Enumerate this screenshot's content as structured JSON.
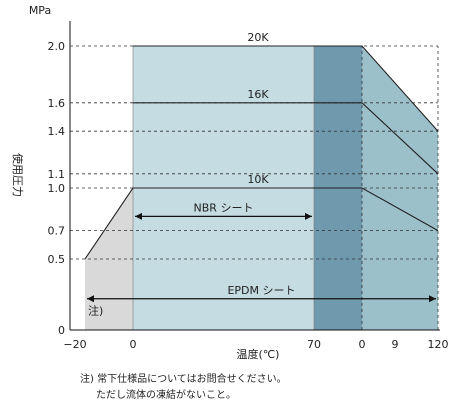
{
  "chart_data": {
    "type": "area",
    "title": "",
    "y_unit": "MPa",
    "ylabel": "使用圧力",
    "xlabel": "温度(℃)",
    "x_tick_labels": [
      "−20",
      "0",
      "70",
      "0",
      "9",
      "120"
    ],
    "y_ticks": [
      0,
      0.5,
      0.7,
      1.0,
      1.1,
      1.4,
      1.6,
      2.0
    ],
    "y_tick_labels": [
      "0",
      "0.5",
      "0.7",
      "1.0",
      "1.1",
      "1.4",
      "1.6",
      "2.0"
    ],
    "ylim": [
      0,
      2.0
    ],
    "xlim": [
      -20,
      120
    ],
    "grid": "dashed-horizontal",
    "series": [
      {
        "name": "20K",
        "x": [
          0,
          70,
          90,
          120
        ],
        "y": [
          2.0,
          2.0,
          2.0,
          1.4
        ]
      },
      {
        "name": "16K",
        "x": [
          0,
          70,
          90,
          120
        ],
        "y": [
          1.6,
          1.6,
          1.6,
          1.1
        ]
      },
      {
        "name": "10K",
        "x": [
          -20,
          0,
          90,
          120
        ],
        "y": [
          0.5,
          1.0,
          1.0,
          0.7
        ]
      }
    ],
    "ranges": [
      {
        "label": "NBR  シート",
        "from": 0,
        "to": 70,
        "y": 0.8
      },
      {
        "label": "EPDM  シート",
        "from": -20,
        "to": 120,
        "y": 0.22
      }
    ],
    "annotations": [
      "注)"
    ],
    "colors": {
      "light": "#c5dde2",
      "mid": "#9bc0ca",
      "dark": "#6f9aae",
      "gray": "#d9d9d9",
      "line": "#222222"
    }
  },
  "notes": [
    "注)  常下仕様品についてはお問合せください。",
    "ただし流体の凍結がないこと。"
  ]
}
